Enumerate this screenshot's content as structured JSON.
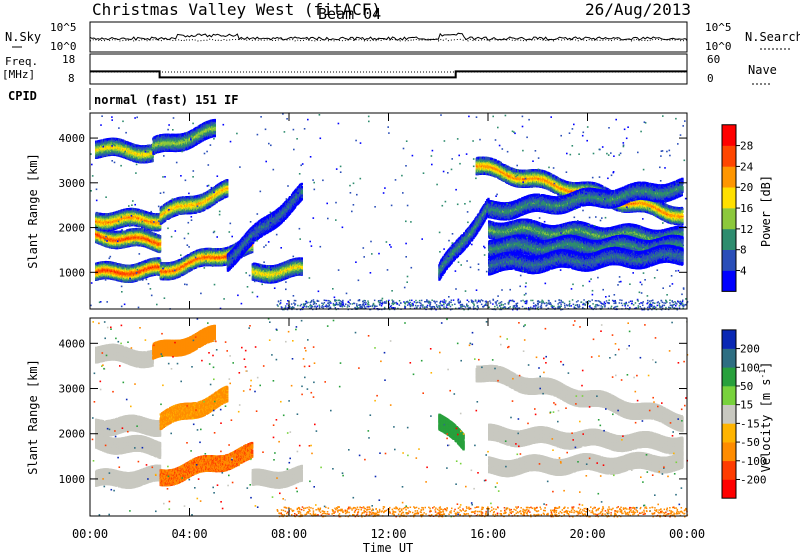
{
  "header": {
    "station": "Christmas Valley West (fitACF)",
    "beam": "Beam 04",
    "date": "26/Aug/2013"
  },
  "noise_panel": {
    "left_label": "N.Sky",
    "left_ticks": [
      "10^5",
      "10^0"
    ],
    "right_label": "N.Search",
    "right_ticks": [
      "10^5",
      "10^0"
    ]
  },
  "freq_panel": {
    "left_label_1": "Freq.",
    "left_label_2": "[MHz]",
    "left_ticks": [
      "18",
      "8"
    ],
    "right_label": "Nave",
    "right_ticks": [
      "60",
      "0"
    ]
  },
  "cpid_panel": {
    "label": "CPID",
    "text": "normal (fast) 151 IF"
  },
  "power_panel": {
    "ylabel": "Slant Range [km]",
    "yticks": [
      "4000",
      "3000",
      "2000",
      "1000"
    ],
    "colorbar_label": "Power [dB]",
    "colorbar_ticks": [
      "28",
      "24",
      "20",
      "16",
      "12",
      "8",
      "4"
    ],
    "colorbar_colors": [
      "#0000ff",
      "#2a4eb8",
      "#2e8c6e",
      "#8cc83c",
      "#ffe000",
      "#ff9600",
      "#ff4600",
      "#ff0000"
    ]
  },
  "velocity_panel": {
    "ylabel": "Slant Range [km]",
    "yticks": [
      "4000",
      "3000",
      "2000",
      "1000"
    ],
    "colorbar_label": "Velocity [m s",
    "colorbar_label_sup": "-1",
    "colorbar_label_end": "]",
    "colorbar_ticks": [
      "200",
      "100",
      "50",
      "15",
      "-15",
      "-50",
      "-100",
      "-200"
    ],
    "colorbar_colors": [
      "#0a28b4",
      "#2e6e82",
      "#28a03c",
      "#78d23c",
      "#c8c8c0",
      "#ffb400",
      "#ff8c00",
      "#ff3c00",
      "#ff0000"
    ]
  },
  "x_axis": {
    "label": "Time UT",
    "ticks": [
      "00:00",
      "04:00",
      "08:00",
      "12:00",
      "16:00",
      "20:00",
      "00:00"
    ]
  },
  "chart_data": {
    "type": "heatmap",
    "x_unit": "hours UT",
    "xlim": [
      0,
      24
    ],
    "y_unit": "km",
    "ylim": [
      180,
      4560
    ],
    "power_range_db": [
      0,
      30
    ],
    "velocity_range": [
      -250,
      250
    ],
    "power_echo_bands": [
      {
        "t0": 0.2,
        "t1": 2.8,
        "r_start": 1000,
        "r_end": 1100,
        "power": 26
      },
      {
        "t0": 2.8,
        "t1": 6.5,
        "r_start": 1050,
        "r_end": 1600,
        "power": 24
      },
      {
        "t0": 0.2,
        "t1": 2.8,
        "r_start": 1850,
        "r_end": 1700,
        "power": 25
      },
      {
        "t0": 0.2,
        "t1": 2.8,
        "r_start": 2200,
        "r_end": 2200,
        "power": 22
      },
      {
        "t0": 2.8,
        "t1": 5.5,
        "r_start": 2300,
        "r_end": 2850,
        "power": 20
      },
      {
        "t0": 0.2,
        "t1": 2.5,
        "r_start": 3800,
        "r_end": 3700,
        "power": 18
      },
      {
        "t0": 2.5,
        "t1": 5.0,
        "r_start": 3800,
        "r_end": 4200,
        "power": 14
      },
      {
        "t0": 5.5,
        "t1": 8.5,
        "r_start": 1300,
        "r_end": 2800,
        "power": 8
      },
      {
        "t0": 6.5,
        "t1": 8.5,
        "r_start": 1000,
        "r_end": 1100,
        "power": 18
      },
      {
        "t0": 14.0,
        "t1": 16.0,
        "r_start": 1000,
        "r_end": 2500,
        "power": 10
      },
      {
        "t0": 15.5,
        "t1": 23.8,
        "r_start": 3400,
        "r_end": 2300,
        "power": 22
      },
      {
        "t0": 16.0,
        "t1": 23.8,
        "r_start": 2400,
        "r_end": 2900,
        "power": 10
      },
      {
        "t0": 16.0,
        "t1": 23.8,
        "r_start": 2000,
        "r_end": 1800,
        "power": 12
      },
      {
        "t0": 16.0,
        "t1": 23.8,
        "r_start": 1600,
        "r_end": 1600,
        "power": 10
      },
      {
        "t0": 16.0,
        "t1": 23.8,
        "r_start": 1200,
        "r_end": 1400,
        "power": 8
      }
    ],
    "velocity_echo_bands": [
      {
        "t0": 0.2,
        "t1": 2.8,
        "r_start": 1000,
        "r_end": 1100,
        "velocity": 0
      },
      {
        "t0": 2.8,
        "t1": 6.5,
        "r_start": 1050,
        "r_end": 1600,
        "velocity": -70
      },
      {
        "t0": 0.2,
        "t1": 2.8,
        "r_start": 1850,
        "r_end": 1700,
        "velocity": 0
      },
      {
        "t0": 0.2,
        "t1": 2.8,
        "r_start": 2200,
        "r_end": 2200,
        "velocity": 0
      },
      {
        "t0": 2.8,
        "t1": 5.5,
        "r_start": 2300,
        "r_end": 2850,
        "velocity": -40
      },
      {
        "t0": 0.2,
        "t1": 2.5,
        "r_start": 3800,
        "r_end": 3700,
        "velocity": 0
      },
      {
        "t0": 2.5,
        "t1": 5.0,
        "r_start": 3800,
        "r_end": 4200,
        "velocity": -60
      },
      {
        "t0": 6.5,
        "t1": 8.5,
        "r_start": 1000,
        "r_end": 1100,
        "velocity": 0
      },
      {
        "t0": 14.0,
        "t1": 15.0,
        "r_start": 2300,
        "r_end": 1800,
        "velocity": 60
      },
      {
        "t0": 15.5,
        "t1": 23.8,
        "r_start": 3400,
        "r_end": 2300,
        "velocity": 0
      },
      {
        "t0": 16.0,
        "t1": 23.8,
        "r_start": 2000,
        "r_end": 1800,
        "velocity": 0
      },
      {
        "t0": 16.0,
        "t1": 23.8,
        "r_start": 1300,
        "r_end": 1400,
        "velocity": 0
      }
    ],
    "ground_scatter_near_range": {
      "t0": 7.5,
      "t1": 24,
      "r_max": 400
    }
  }
}
